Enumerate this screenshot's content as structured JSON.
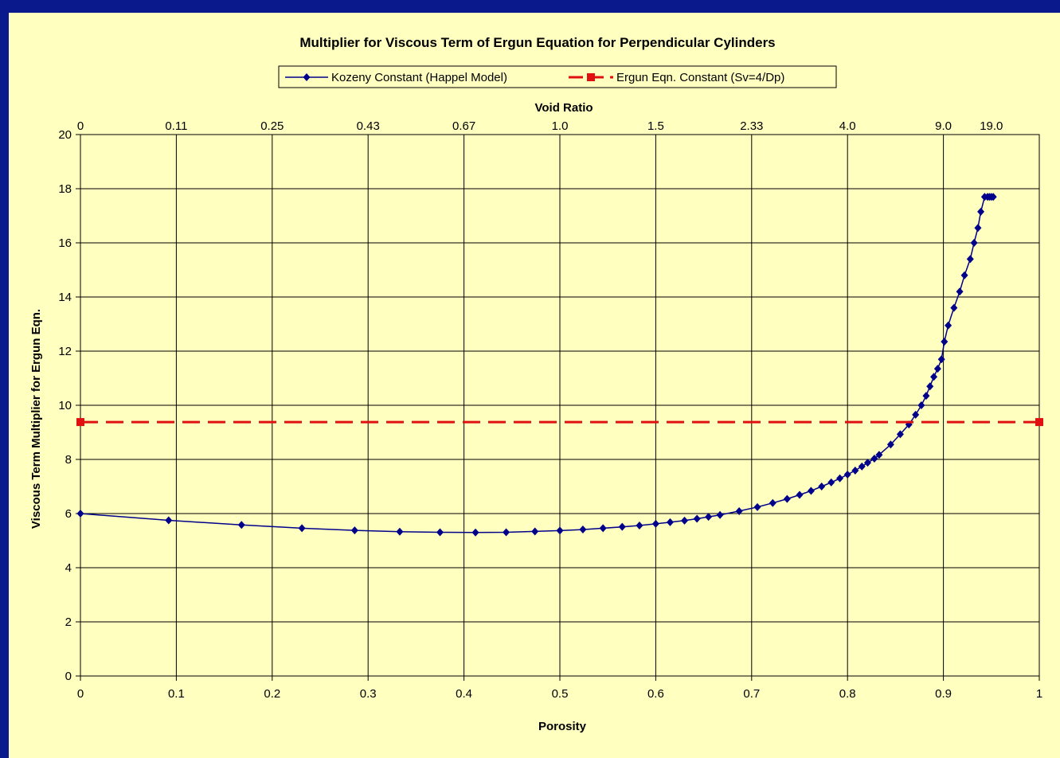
{
  "chart_data": {
    "type": "line",
    "title": "Multiplier for Viscous Term of Ergun Equation for Perpendicular Cylinders",
    "xlabel": "Porosity",
    "ylabel": "Viscous Term Multiplier for Ergun Eqn.",
    "x2label": "Void Ratio",
    "xlim": [
      0,
      1
    ],
    "ylim": [
      0,
      20
    ],
    "xticks": [
      "0",
      "0.1",
      "0.2",
      "0.3",
      "0.4",
      "0.5",
      "0.6",
      "0.7",
      "0.8",
      "0.9",
      "1"
    ],
    "yticks": [
      "0",
      "2",
      "4",
      "6",
      "8",
      "10",
      "12",
      "14",
      "16",
      "18",
      "20"
    ],
    "x2ticks": [
      "0",
      "0.11",
      "0.25",
      "0.43",
      "0.67",
      "1.0",
      "1.5",
      "2.33",
      "4.0",
      "9.0",
      "19.0"
    ],
    "x2tick_porosity": [
      0,
      0.1,
      0.2,
      0.3,
      0.4,
      0.5,
      0.6,
      0.7,
      0.8,
      0.9,
      0.95
    ],
    "grid": true,
    "legend_position": "top-center",
    "series": [
      {
        "name": "Kozeny Constant (Happel Model)",
        "color": "#00008b",
        "marker": "diamond",
        "x": [
          0,
          0.092,
          0.168,
          0.231,
          0.286,
          0.333,
          0.375,
          0.412,
          0.444,
          0.474,
          0.5,
          0.524,
          0.545,
          0.565,
          0.583,
          0.6,
          0.615,
          0.63,
          0.643,
          0.655,
          0.667,
          0.687,
          0.706,
          0.722,
          0.737,
          0.75,
          0.762,
          0.773,
          0.783,
          0.792,
          0.8,
          0.808,
          0.815,
          0.821,
          0.828,
          0.833,
          0.845,
          0.855,
          0.864,
          0.871,
          0.877,
          0.882,
          0.886,
          0.89,
          0.894,
          0.898,
          0.901,
          0.905,
          0.911,
          0.917,
          0.922,
          0.928,
          0.932,
          0.936,
          0.939,
          0.943,
          0.946,
          0.948,
          0.95,
          0.952
        ],
        "y": [
          6.0,
          5.75,
          5.58,
          5.46,
          5.38,
          5.33,
          5.31,
          5.3,
          5.31,
          5.34,
          5.37,
          5.41,
          5.46,
          5.51,
          5.56,
          5.62,
          5.68,
          5.74,
          5.81,
          5.88,
          5.95,
          6.09,
          6.24,
          6.39,
          6.54,
          6.69,
          6.84,
          7.0,
          7.15,
          7.3,
          7.44,
          7.59,
          7.74,
          7.88,
          8.03,
          8.17,
          8.55,
          8.93,
          9.29,
          9.65,
          10.0,
          10.35,
          10.7,
          11.05,
          11.35,
          11.7,
          12.35,
          12.95,
          13.6,
          14.2,
          14.8,
          15.4,
          16.0,
          16.55,
          17.15,
          17.7,
          17.7,
          17.7,
          17.7,
          17.7
        ]
      },
      {
        "name": "Ergun Eqn. Constant (Sv=4/Dp)",
        "color": "#e01010",
        "marker": "square",
        "line_style": "dashed",
        "x": [
          0,
          1
        ],
        "y": [
          9.38,
          9.38
        ]
      }
    ]
  }
}
